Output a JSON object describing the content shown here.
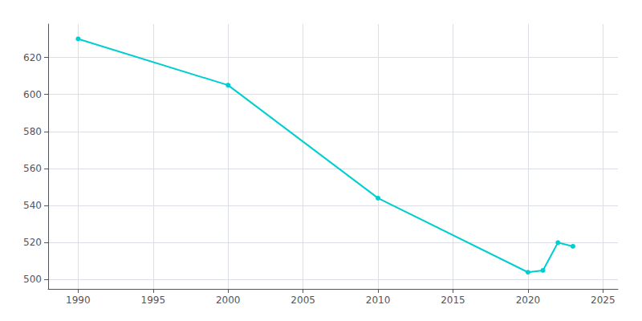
{
  "chart_data": {
    "type": "line",
    "x": [
      1990,
      2000,
      2010,
      2020,
      2021,
      2022,
      2023
    ],
    "values": [
      630,
      605,
      544,
      504,
      505,
      520,
      518
    ],
    "color": "#00CED1",
    "marker": "circle",
    "xlim": [
      1988,
      2026
    ],
    "xticks": [
      1990,
      1995,
      2000,
      2005,
      2010,
      2015,
      2020,
      2025
    ],
    "ylim": [
      495,
      638
    ],
    "yticks": [
      500,
      520,
      540,
      560,
      580,
      600,
      620
    ],
    "grid": true
  }
}
